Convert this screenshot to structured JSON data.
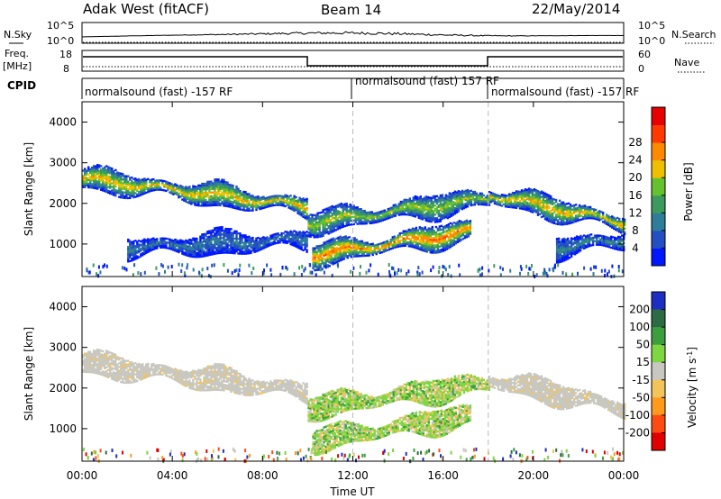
{
  "header": {
    "title": "Adak West (fitACF)",
    "beam": "Beam 14",
    "date": "22/May/2014"
  },
  "strip_labels": {
    "nsky": "N.Sky",
    "nsky_top": "10^5",
    "nsky_bottom": "10^0",
    "nsearch": "N.Search",
    "nsearch_top": "10^5",
    "nsearch_bottom": "10^0",
    "freq": "Freq.",
    "freq_unit": "[MHz]",
    "freq_top": "18",
    "freq_bottom": "8",
    "nave": "Nave",
    "nave_top": "60",
    "nave_bottom": "0",
    "cpid": "CPID"
  },
  "cpid_segments": [
    {
      "label": "normalsound (fast) -157 RF",
      "start_hour": 0
    },
    {
      "label": "normalsound (fast) 157 RF",
      "start_hour": 12
    },
    {
      "label": "normalsound (fast) -157 RF",
      "start_hour": 18
    }
  ],
  "x_axis": {
    "label": "Time UT",
    "ticks": [
      "00:00",
      "04:00",
      "08:00",
      "12:00",
      "16:00",
      "20:00",
      "00:00"
    ]
  },
  "chart_data": [
    {
      "type": "heatmap",
      "name": "power",
      "xlabel": "Time UT",
      "ylabel": "Slant Range [km]",
      "xlim": [
        0,
        24
      ],
      "ylim": [
        200,
        4500
      ],
      "y_ticks": [
        "1000",
        "2000",
        "3000",
        "4000"
      ],
      "colorbar": {
        "label": "Power [dB]",
        "ticks": [
          "4",
          "8",
          "12",
          "16",
          "20",
          "24",
          "28"
        ],
        "colors": [
          "#0018ff",
          "#234fc2",
          "#2e7d9b",
          "#3c9a5c",
          "#66c12f",
          "#f0c000",
          "#ff8a00",
          "#ff3a00",
          "#e60000"
        ]
      },
      "regions": [
        {
          "desc": "upper band",
          "hours": [
            0,
            10
          ],
          "range_km": [
            2600,
            1900
          ],
          "peak": 24
        },
        {
          "desc": "lower band",
          "hours": [
            2,
            10
          ],
          "range_km": [
            900,
            1100
          ],
          "peak": 10
        },
        {
          "desc": "near range patch",
          "hours": [
            10.2,
            17.2
          ],
          "range_km": [
            700,
            1300
          ],
          "peak": 28
        },
        {
          "desc": "mid band",
          "hours": [
            10,
            18
          ],
          "range_km": [
            1500,
            2100
          ],
          "peak": 20
        },
        {
          "desc": "evening band",
          "hours": [
            18,
            24
          ],
          "range_km": [
            2200,
            1500
          ],
          "peak": 24
        },
        {
          "desc": "evening lower band",
          "hours": [
            21,
            24
          ],
          "range_km": [
            900,
            1100
          ],
          "peak": 12
        }
      ]
    },
    {
      "type": "heatmap",
      "name": "velocity",
      "xlabel": "Time UT",
      "ylabel": "Slant Range [km]",
      "xlim": [
        0,
        24
      ],
      "ylim": [
        200,
        4500
      ],
      "y_ticks": [
        "1000",
        "2000",
        "3000",
        "4000"
      ],
      "colorbar": {
        "label": "Velocity [m s^-1]",
        "ticks": [
          "200",
          "100",
          "50",
          "15",
          "-15",
          "-50",
          "-100",
          "-200"
        ],
        "colors": [
          "#1c2fc2",
          "#2d6b45",
          "#3c9e3c",
          "#7ed640",
          "#c8c8c0",
          "#f2c45a",
          "#ff9a1c",
          "#ff4a10",
          "#e00000"
        ]
      },
      "regions": [
        {
          "desc": "ground scatter band",
          "hours": [
            0,
            10
          ],
          "range_km": [
            2600,
            1900
          ],
          "velocity": 0
        },
        {
          "desc": "near range patch",
          "hours": [
            10.2,
            17.2
          ],
          "range_km": [
            700,
            1300
          ],
          "velocity": 40
        },
        {
          "desc": "mid band",
          "hours": [
            10,
            18
          ],
          "range_km": [
            1500,
            2100
          ],
          "velocity": 30
        },
        {
          "desc": "evening band",
          "hours": [
            18,
            24
          ],
          "range_km": [
            2200,
            1500
          ],
          "velocity": 0
        }
      ]
    }
  ]
}
